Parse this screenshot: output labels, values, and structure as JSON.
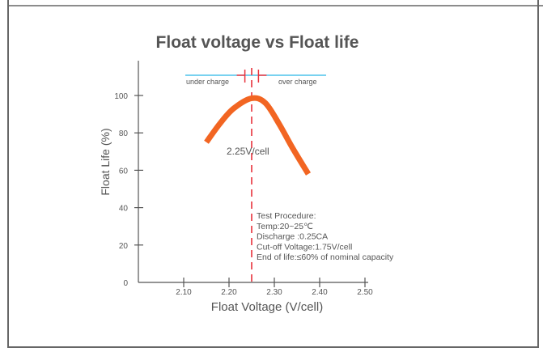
{
  "chart_data": {
    "type": "line",
    "title": "Float voltage vs Float life",
    "xlabel": "Float Voltage (V/cell)",
    "ylabel": "Float Life (%)",
    "xlim": [
      2.0,
      2.5
    ],
    "ylim": [
      0,
      100
    ],
    "x_ticks": [
      "2.10",
      "2.20",
      "2.30",
      "2.40",
      "2.50"
    ],
    "y_ticks": [
      "0",
      "20",
      "40",
      "60",
      "80",
      "100"
    ],
    "series": [
      {
        "name": "Float life",
        "color": "#f26522",
        "x": [
          2.15,
          2.18,
          2.21,
          2.25,
          2.28,
          2.31,
          2.34,
          2.375
        ],
        "y": [
          75,
          85,
          93,
          98.5,
          96,
          85,
          72,
          58
        ]
      }
    ],
    "reference_line": {
      "x": 2.25,
      "label": "2.25V/cell",
      "color": "#e8323c"
    },
    "band": {
      "left_label": "under charge",
      "right_label": "over charge",
      "color": "#29b6e8"
    },
    "annotations": [
      "Test Procedure:",
      "Temp:20~25℃",
      "Discharge :0.25CA",
      "Cut-off Voltage:1.75V/cell",
      "End of life:≤60% of nominal capacity"
    ]
  }
}
